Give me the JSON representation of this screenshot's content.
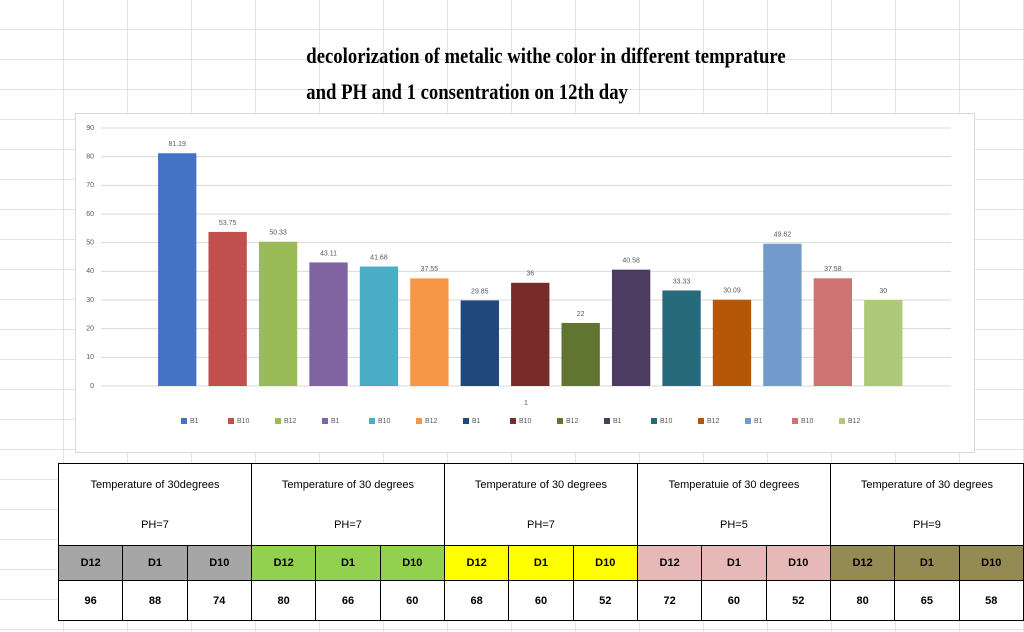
{
  "chart_data": {
    "type": "bar",
    "title": [
      "decolorization of metalic withe color in different temprature",
      "and PH and    1    consentration on 12th day"
    ],
    "categories": [
      "1"
    ],
    "ylim": [
      0,
      90
    ],
    "yticks": [
      0,
      10,
      20,
      30,
      40,
      50,
      60,
      70,
      80,
      90
    ],
    "grid": true,
    "legend": "bottom",
    "series": [
      {
        "name": "B1",
        "color": "#4472c4",
        "values": [
          81.19
        ]
      },
      {
        "name": "B10",
        "color": "#c0504d",
        "values": [
          53.75
        ]
      },
      {
        "name": "B12",
        "color": "#9bbb59",
        "values": [
          50.33
        ]
      },
      {
        "name": "B1",
        "color": "#8064a2",
        "values": [
          43.11
        ]
      },
      {
        "name": "B10",
        "color": "#4bacc6",
        "values": [
          41.68
        ]
      },
      {
        "name": "B12",
        "color": "#f79646",
        "values": [
          37.55
        ]
      },
      {
        "name": "B1",
        "color": "#1f497d",
        "values": [
          29.85
        ]
      },
      {
        "name": "B10",
        "color": "#772c2a",
        "values": [
          36.0
        ]
      },
      {
        "name": "B12",
        "color": "#5f7530",
        "values": [
          22.0
        ]
      },
      {
        "name": "B1",
        "color": "#4d3b62",
        "values": [
          40.58
        ]
      },
      {
        "name": "B10",
        "color": "#276a7c",
        "values": [
          33.33
        ]
      },
      {
        "name": "B12",
        "color": "#b65708",
        "values": [
          30.09
        ]
      },
      {
        "name": "B1",
        "color": "#729aca",
        "values": [
          49.62
        ]
      },
      {
        "name": "B10",
        "color": "#cd7371",
        "values": [
          37.58
        ]
      },
      {
        "name": "B12",
        "color": "#afc97a",
        "values": [
          30.0
        ]
      }
    ]
  },
  "table": {
    "groups": [
      {
        "header": "Temperature of 30degrees",
        "ph": "PH=7",
        "color": "#a6a6a6",
        "columns": [
          "D12",
          "D1",
          "D10"
        ],
        "values": [
          96,
          88,
          74
        ]
      },
      {
        "header": "Temperature of 30 degrees",
        "ph": "PH=7",
        "color": "#92d050",
        "columns": [
          "D12",
          "D1",
          "D10"
        ],
        "values": [
          80,
          66,
          60
        ]
      },
      {
        "header": "Temperature of 30 degrees",
        "ph": "PH=7",
        "color": "#ffff00",
        "columns": [
          "D12",
          "D1",
          "D10"
        ],
        "values": [
          68,
          60,
          52
        ]
      },
      {
        "header": "Temperatuie of 30 degrees",
        "ph": "PH=5",
        "color": "#e6b8b7",
        "columns": [
          "D12",
          "D1",
          "D10"
        ],
        "values": [
          72,
          60,
          52
        ]
      },
      {
        "header": "Temperature of 30 degrees",
        "ph": "PH=9",
        "color": "#948a54",
        "columns": [
          "D12",
          "D1",
          "D10"
        ],
        "values": [
          80,
          65,
          58
        ]
      }
    ]
  }
}
